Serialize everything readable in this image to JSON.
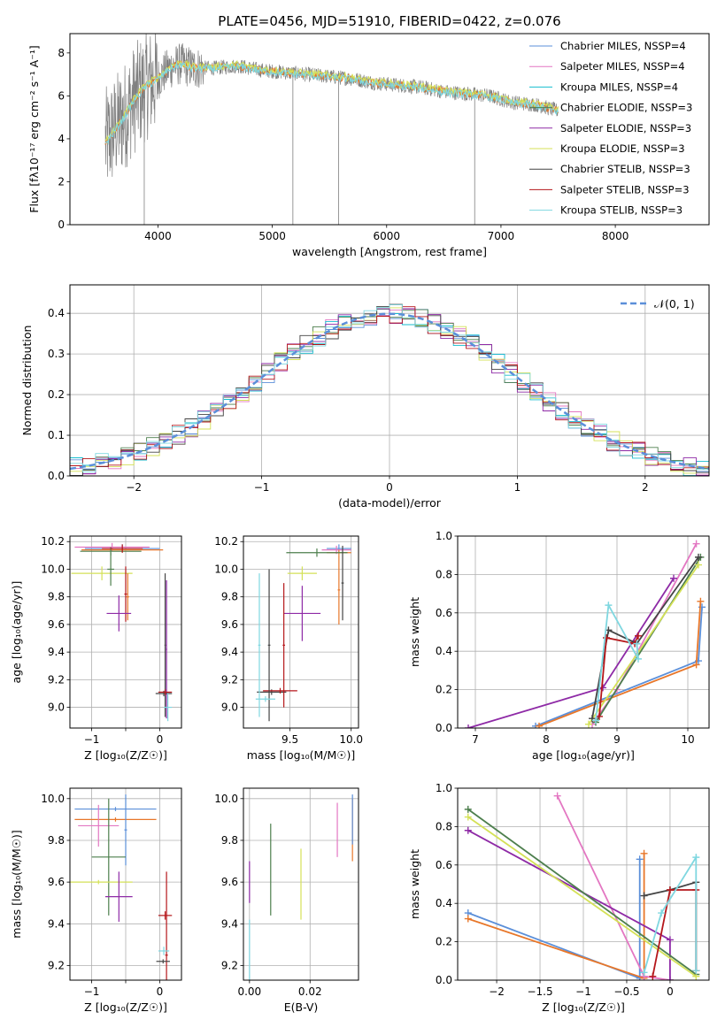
{
  "title": "PLATE=0456, MJD=51910, FIBERID=0422, z=0.076",
  "colors": {
    "chabrier_miles": "#5b8fd9",
    "salpeter_miles": "#e377c2",
    "kroupa_miles": "#17becf",
    "chabrier_elodie": "#4d7f4d",
    "salpeter_elodie": "#8e2aa6",
    "kroupa_elodie": "#d4e157",
    "chabrier_stelib": "#444444",
    "salpeter_stelib": "#b5171b",
    "kroupa_stelib": "#7fd7e0",
    "orange": "#e8772a",
    "gray_spectrum": "#808080",
    "normal_curve": "#5b8fd9"
  },
  "chart_data": [
    {
      "id": "spectrum",
      "type": "line",
      "xlabel": "wavelength [Angstrom, rest frame]",
      "ylabel": "Flux [fλ10⁻¹⁷ erg cm⁻² s⁻¹ A⁻¹]",
      "xlim": [
        3230,
        8820
      ],
      "ylim": [
        0,
        8.9
      ],
      "xticks": [
        4000,
        5000,
        6000,
        7000,
        8000
      ],
      "yticks": [
        0,
        2,
        4,
        6,
        8
      ],
      "continuum": {
        "x": [
          3540,
          3620,
          3700,
          3800,
          3900,
          4000,
          4100,
          4200,
          4300,
          4500,
          4700,
          4900,
          5100,
          5300,
          5500,
          5700,
          5900,
          6100,
          6300,
          6500,
          6700,
          6900,
          7100,
          7300,
          7500
        ],
        "y": [
          3.8,
          4.4,
          5.0,
          5.9,
          6.5,
          6.8,
          7.3,
          7.5,
          7.3,
          7.3,
          7.4,
          7.2,
          7.1,
          7.0,
          6.9,
          6.8,
          6.6,
          6.5,
          6.4,
          6.2,
          6.1,
          6.0,
          5.7,
          5.6,
          5.3
        ]
      },
      "legend": [
        "Chabrier MILES, NSSP=4",
        "Salpeter MILES, NSSP=4",
        "Kroupa MILES, NSSP=4",
        "Chabrier ELODIE, NSSP=3",
        "Salpeter ELODIE, NSSP=3",
        "Kroupa ELODIE, NSSP=3",
        "Chabrier STELIB, NSSP=3",
        "Salpeter STELIB, NSSP=3",
        "Kroupa STELIB, NSSP=3"
      ]
    },
    {
      "id": "residuals",
      "type": "line",
      "xlabel": "(data-model)/error",
      "ylabel": "Normed distribution",
      "xlim": [
        -2.5,
        2.5
      ],
      "ylim": [
        0,
        0.47
      ],
      "xticks": [
        -2,
        -1,
        0,
        1,
        2
      ],
      "yticks": [
        0.0,
        0.1,
        0.2,
        0.3,
        0.4
      ],
      "legend": [
        "𝒩(0, 1)"
      ]
    },
    {
      "id": "age_vs_Z",
      "type": "scatter",
      "xlabel": "Z [log₁₀(Z/Z☉)]",
      "ylabel": "age  [log₁₀(age/yr)]",
      "xlim": [
        -1.32,
        0.32
      ],
      "ylim": [
        8.85,
        10.24
      ],
      "xticks": [
        -1,
        -0.5,
        0
      ],
      "xticklabels": [
        "−1",
        "",
        "0"
      ],
      "yticks": [
        9.0,
        9.2,
        9.4,
        9.6,
        9.8,
        10.0,
        10.2
      ],
      "points": [
        {
          "x": -0.55,
          "y": 10.15,
          "xerr": 0.55,
          "yerr": 0.03,
          "color": "#5b8fd9"
        },
        {
          "x": -0.7,
          "y": 10.16,
          "xerr": 0.55,
          "yerr": 0.03,
          "color": "#e377c2"
        },
        {
          "x": -0.55,
          "y": 10.14,
          "xerr": 0.6,
          "yerr": 0.02,
          "color": "#e8772a"
        },
        {
          "x": -0.72,
          "y": 10.13,
          "xerr": 0.45,
          "yerr": 0.03,
          "color": "#4d7f4d"
        },
        {
          "x": -0.55,
          "y": 10.15,
          "xerr": 0.3,
          "yerr": 0.03,
          "color": "#b5171b"
        },
        {
          "x": -0.85,
          "y": 9.97,
          "xerr": 0.45,
          "yerr": 0.05,
          "color": "#d4e157"
        },
        {
          "x": -0.72,
          "y": 10.0,
          "xerr": 0.05,
          "yerr": 0.12,
          "color": "#4d7f4d"
        },
        {
          "x": -0.5,
          "y": 9.82,
          "xerr": 0.02,
          "yerr": 0.2,
          "color": "#b5171b"
        },
        {
          "x": -0.47,
          "y": 9.8,
          "xerr": 0.02,
          "yerr": 0.17,
          "color": "#e8772a"
        },
        {
          "x": -0.6,
          "y": 9.68,
          "xerr": 0.18,
          "yerr": 0.13,
          "color": "#8e2aa6"
        },
        {
          "x": 0.08,
          "y": 9.45,
          "xerr": 0.01,
          "yerr": 0.52,
          "color": "#444444"
        },
        {
          "x": 0.1,
          "y": 9.42,
          "xerr": 0.01,
          "yerr": 0.5,
          "color": "#8e2aa6"
        },
        {
          "x": 0.06,
          "y": 9.1,
          "xerr": 0.12,
          "yerr": 0.02,
          "color": "#444444"
        },
        {
          "x": 0.08,
          "y": 9.11,
          "xerr": 0.1,
          "yerr": 0.02,
          "color": "#b5171b"
        },
        {
          "x": 0.12,
          "y": 9.0,
          "xerr": 0.06,
          "yerr": 0.1,
          "color": "#7fd7e0"
        }
      ]
    },
    {
      "id": "age_vs_mass",
      "type": "scatter",
      "xlabel": "mass [log₁₀(M/M☉)]",
      "ylabel": "",
      "xlim": [
        9.12,
        10.06
      ],
      "ylim": [
        8.85,
        10.24
      ],
      "xticks": [
        9.5,
        10.0
      ],
      "xticklabels": [
        "9.5",
        "10.0"
      ],
      "yticks": [
        9.0,
        9.2,
        9.4,
        9.6,
        9.8,
        10.0,
        10.2
      ],
      "points": [
        {
          "x": 9.9,
          "y": 10.15,
          "xerr": 0.1,
          "yerr": 0.03,
          "color": "#5b8fd9"
        },
        {
          "x": 9.88,
          "y": 10.14,
          "xerr": 0.12,
          "yerr": 0.03,
          "color": "#e377c2"
        },
        {
          "x": 9.9,
          "y": 10.12,
          "xerr": 0.1,
          "yerr": 0.02,
          "color": "#e8772a"
        },
        {
          "x": 9.72,
          "y": 10.12,
          "xerr": 0.25,
          "yerr": 0.03,
          "color": "#4d7f4d"
        },
        {
          "x": 9.6,
          "y": 9.97,
          "xerr": 0.12,
          "yerr": 0.05,
          "color": "#d4e157"
        },
        {
          "x": 9.6,
          "y": 9.68,
          "xerr": 0.15,
          "yerr": 0.2,
          "color": "#8e2aa6"
        },
        {
          "x": 9.9,
          "y": 9.85,
          "xerr": 0.01,
          "yerr": 0.25,
          "color": "#e8772a"
        },
        {
          "x": 9.93,
          "y": 9.9,
          "xerr": 0.01,
          "yerr": 0.27,
          "color": "#444444"
        },
        {
          "x": 9.35,
          "y": 9.11,
          "xerr": 0.12,
          "yerr": 0.02,
          "color": "#444444"
        },
        {
          "x": 9.42,
          "y": 9.12,
          "xerr": 0.14,
          "yerr": 0.02,
          "color": "#b5171b"
        },
        {
          "x": 9.33,
          "y": 9.45,
          "xerr": 0.01,
          "yerr": 0.55,
          "color": "#444444"
        },
        {
          "x": 9.25,
          "y": 9.45,
          "xerr": 0.01,
          "yerr": 0.52,
          "color": "#7fd7e0"
        },
        {
          "x": 9.45,
          "y": 9.45,
          "xerr": 0.01,
          "yerr": 0.45,
          "color": "#b5171b"
        },
        {
          "x": 9.3,
          "y": 9.06,
          "xerr": 0.08,
          "yerr": 0.02,
          "color": "#7fd7e0"
        }
      ]
    },
    {
      "id": "weight_vs_age",
      "type": "line",
      "xlabel": "age  [log₁₀(age/yr)]",
      "ylabel": "mass weight",
      "xlim": [
        6.75,
        10.3
      ],
      "ylim": [
        0,
        1.0
      ],
      "xticks": [
        7,
        8,
        9,
        10
      ],
      "yticks": [
        0.0,
        0.2,
        0.4,
        0.6,
        0.8,
        1.0
      ],
      "series": [
        {
          "color": "#5b8fd9",
          "x": [
            7.85,
            10.15,
            10.2
          ],
          "y": [
            0.01,
            0.35,
            0.63
          ]
        },
        {
          "color": "#e8772a",
          "x": [
            7.9,
            10.12,
            10.18
          ],
          "y": [
            0.01,
            0.33,
            0.66
          ]
        },
        {
          "color": "#e377c2",
          "x": [
            8.65,
            9.0,
            10.12
          ],
          "y": [
            0.02,
            0.2,
            0.96
          ]
        },
        {
          "color": "#8e2aa6",
          "x": [
            6.9,
            8.8,
            9.8
          ],
          "y": [
            0.0,
            0.21,
            0.78
          ]
        },
        {
          "color": "#4d7f4d",
          "x": [
            8.7,
            10.18
          ],
          "y": [
            0.03,
            0.89
          ]
        },
        {
          "color": "#d4e157",
          "x": [
            8.6,
            10.15
          ],
          "y": [
            0.02,
            0.85
          ]
        },
        {
          "color": "#444444",
          "x": [
            8.65,
            8.88,
            9.28,
            10.15
          ],
          "y": [
            0.05,
            0.51,
            0.44,
            0.89
          ]
        },
        {
          "color": "#b5171b",
          "x": [
            8.75,
            8.85,
            9.25,
            9.3
          ],
          "y": [
            0.06,
            0.47,
            0.44,
            0.48
          ]
        },
        {
          "color": "#7fd7e0",
          "x": [
            8.7,
            8.88,
            9.3,
            9.28
          ],
          "y": [
            0.04,
            0.64,
            0.36,
            0.44
          ]
        }
      ]
    },
    {
      "id": "mass_vs_Z",
      "type": "scatter",
      "xlabel": "Z [log₁₀(Z/Z☉)]",
      "ylabel": "mass [log₁₀(M/M☉)]",
      "xlim": [
        -1.32,
        0.32
      ],
      "ylim": [
        9.13,
        10.05
      ],
      "xticks": [
        -1,
        -0.5,
        0
      ],
      "xticklabels": [
        "−1",
        "",
        "0"
      ],
      "yticks": [
        9.2,
        9.4,
        9.6,
        9.8,
        10.0
      ],
      "points": [
        {
          "x": -0.65,
          "y": 9.95,
          "xerr": 0.6,
          "yerr": 0.01,
          "color": "#5b8fd9"
        },
        {
          "x": -0.65,
          "y": 9.9,
          "xerr": 0.6,
          "yerr": 0.01,
          "color": "#e8772a"
        },
        {
          "x": -0.9,
          "y": 9.87,
          "xerr": 0.3,
          "yerr": 0.1,
          "color": "#e377c2"
        },
        {
          "x": -0.5,
          "y": 9.85,
          "xerr": 0.02,
          "yerr": 0.17,
          "color": "#5b8fd9"
        },
        {
          "x": -0.75,
          "y": 9.72,
          "xerr": 0.25,
          "yerr": 0.28,
          "color": "#4d7f4d"
        },
        {
          "x": -0.9,
          "y": 9.6,
          "xerr": 0.5,
          "yerr": 0.01,
          "color": "#d4e157"
        },
        {
          "x": -0.6,
          "y": 9.53,
          "xerr": 0.2,
          "yerr": 0.12,
          "color": "#8e2aa6"
        },
        {
          "x": 0.08,
          "y": 9.44,
          "xerr": 0.1,
          "yerr": 0.02,
          "color": "#b5171b"
        },
        {
          "x": 0.1,
          "y": 9.25,
          "xerr": 0.02,
          "yerr": 0.4,
          "color": "#b5171b"
        },
        {
          "x": 0.06,
          "y": 9.27,
          "xerr": 0.08,
          "yerr": 0.02,
          "color": "#7fd7e0"
        },
        {
          "x": 0.05,
          "y": 9.22,
          "xerr": 0.1,
          "yerr": 0.01,
          "color": "#444444"
        }
      ]
    },
    {
      "id": "mass_vs_ebv",
      "type": "scatter",
      "xlabel": "E(B-V)",
      "ylabel": "",
      "xlim": [
        -0.002,
        0.036
      ],
      "ylim": [
        9.13,
        10.05
      ],
      "xticks": [
        0.0,
        0.02
      ],
      "xticklabels": [
        "0.00",
        "0.02"
      ],
      "yticks": [
        9.2,
        9.4,
        9.6,
        9.8,
        10.0
      ],
      "points": [
        {
          "x": 0.0,
          "y": 9.6,
          "xerr": 0,
          "yerr": 0.1,
          "color": "#8e2aa6"
        },
        {
          "x": 0.0,
          "y": 9.27,
          "xerr": 0,
          "yerr": 0.15,
          "color": "#7fd7e0"
        },
        {
          "x": 0.007,
          "y": 9.66,
          "xerr": 0,
          "yerr": 0.22,
          "color": "#4d7f4d"
        },
        {
          "x": 0.017,
          "y": 9.59,
          "xerr": 0,
          "yerr": 0.17,
          "color": "#d4e157"
        },
        {
          "x": 0.029,
          "y": 9.85,
          "xerr": 0,
          "yerr": 0.13,
          "color": "#e377c2"
        },
        {
          "x": 0.034,
          "y": 9.85,
          "xerr": 0,
          "yerr": 0.15,
          "color": "#e8772a"
        },
        {
          "x": 0.034,
          "y": 9.9,
          "xerr": 0,
          "yerr": 0.12,
          "color": "#5b8fd9"
        }
      ]
    },
    {
      "id": "weight_vs_Z",
      "type": "line",
      "xlabel": "Z [log₁₀(Z/Z☉)]",
      "ylabel": "mass weight",
      "xlim": [
        -2.45,
        0.45
      ],
      "ylim": [
        0,
        1.0
      ],
      "xticks": [
        -2.0,
        -1.5,
        -1.0,
        -0.5,
        0.0
      ],
      "yticks": [
        0.0,
        0.2,
        0.4,
        0.6,
        0.8,
        1.0
      ],
      "series": [
        {
          "color": "#5b8fd9",
          "x": [
            -2.33,
            -0.35,
            -0.35
          ],
          "y": [
            0.35,
            0.01,
            0.63
          ]
        },
        {
          "color": "#e8772a",
          "x": [
            -2.33,
            -0.3,
            -0.3
          ],
          "y": [
            0.32,
            0.01,
            0.66
          ]
        },
        {
          "color": "#e377c2",
          "x": [
            -1.3,
            -0.3,
            0.0
          ],
          "y": [
            0.96,
            0.02,
            0.0
          ]
        },
        {
          "color": "#8e2aa6",
          "x": [
            -2.33,
            0.0,
            0.0
          ],
          "y": [
            0.78,
            0.21,
            0.0
          ]
        },
        {
          "color": "#4d7f4d",
          "x": [
            -2.33,
            0.3
          ],
          "y": [
            0.89,
            0.03
          ]
        },
        {
          "color": "#d4e157",
          "x": [
            -2.33,
            0.3
          ],
          "y": [
            0.85,
            0.02
          ]
        },
        {
          "color": "#444444",
          "x": [
            -0.3,
            0.0,
            0.3,
            0.3
          ],
          "y": [
            0.44,
            0.47,
            0.51,
            0.05
          ]
        },
        {
          "color": "#b5171b",
          "x": [
            -0.2,
            0.0,
            0.3,
            0.3
          ],
          "y": [
            0.02,
            0.47,
            0.47,
            0.05
          ]
        },
        {
          "color": "#7fd7e0",
          "x": [
            -0.3,
            -0.1,
            0.3,
            0.3
          ],
          "y": [
            0.04,
            0.35,
            0.64,
            0.05
          ]
        }
      ]
    }
  ]
}
